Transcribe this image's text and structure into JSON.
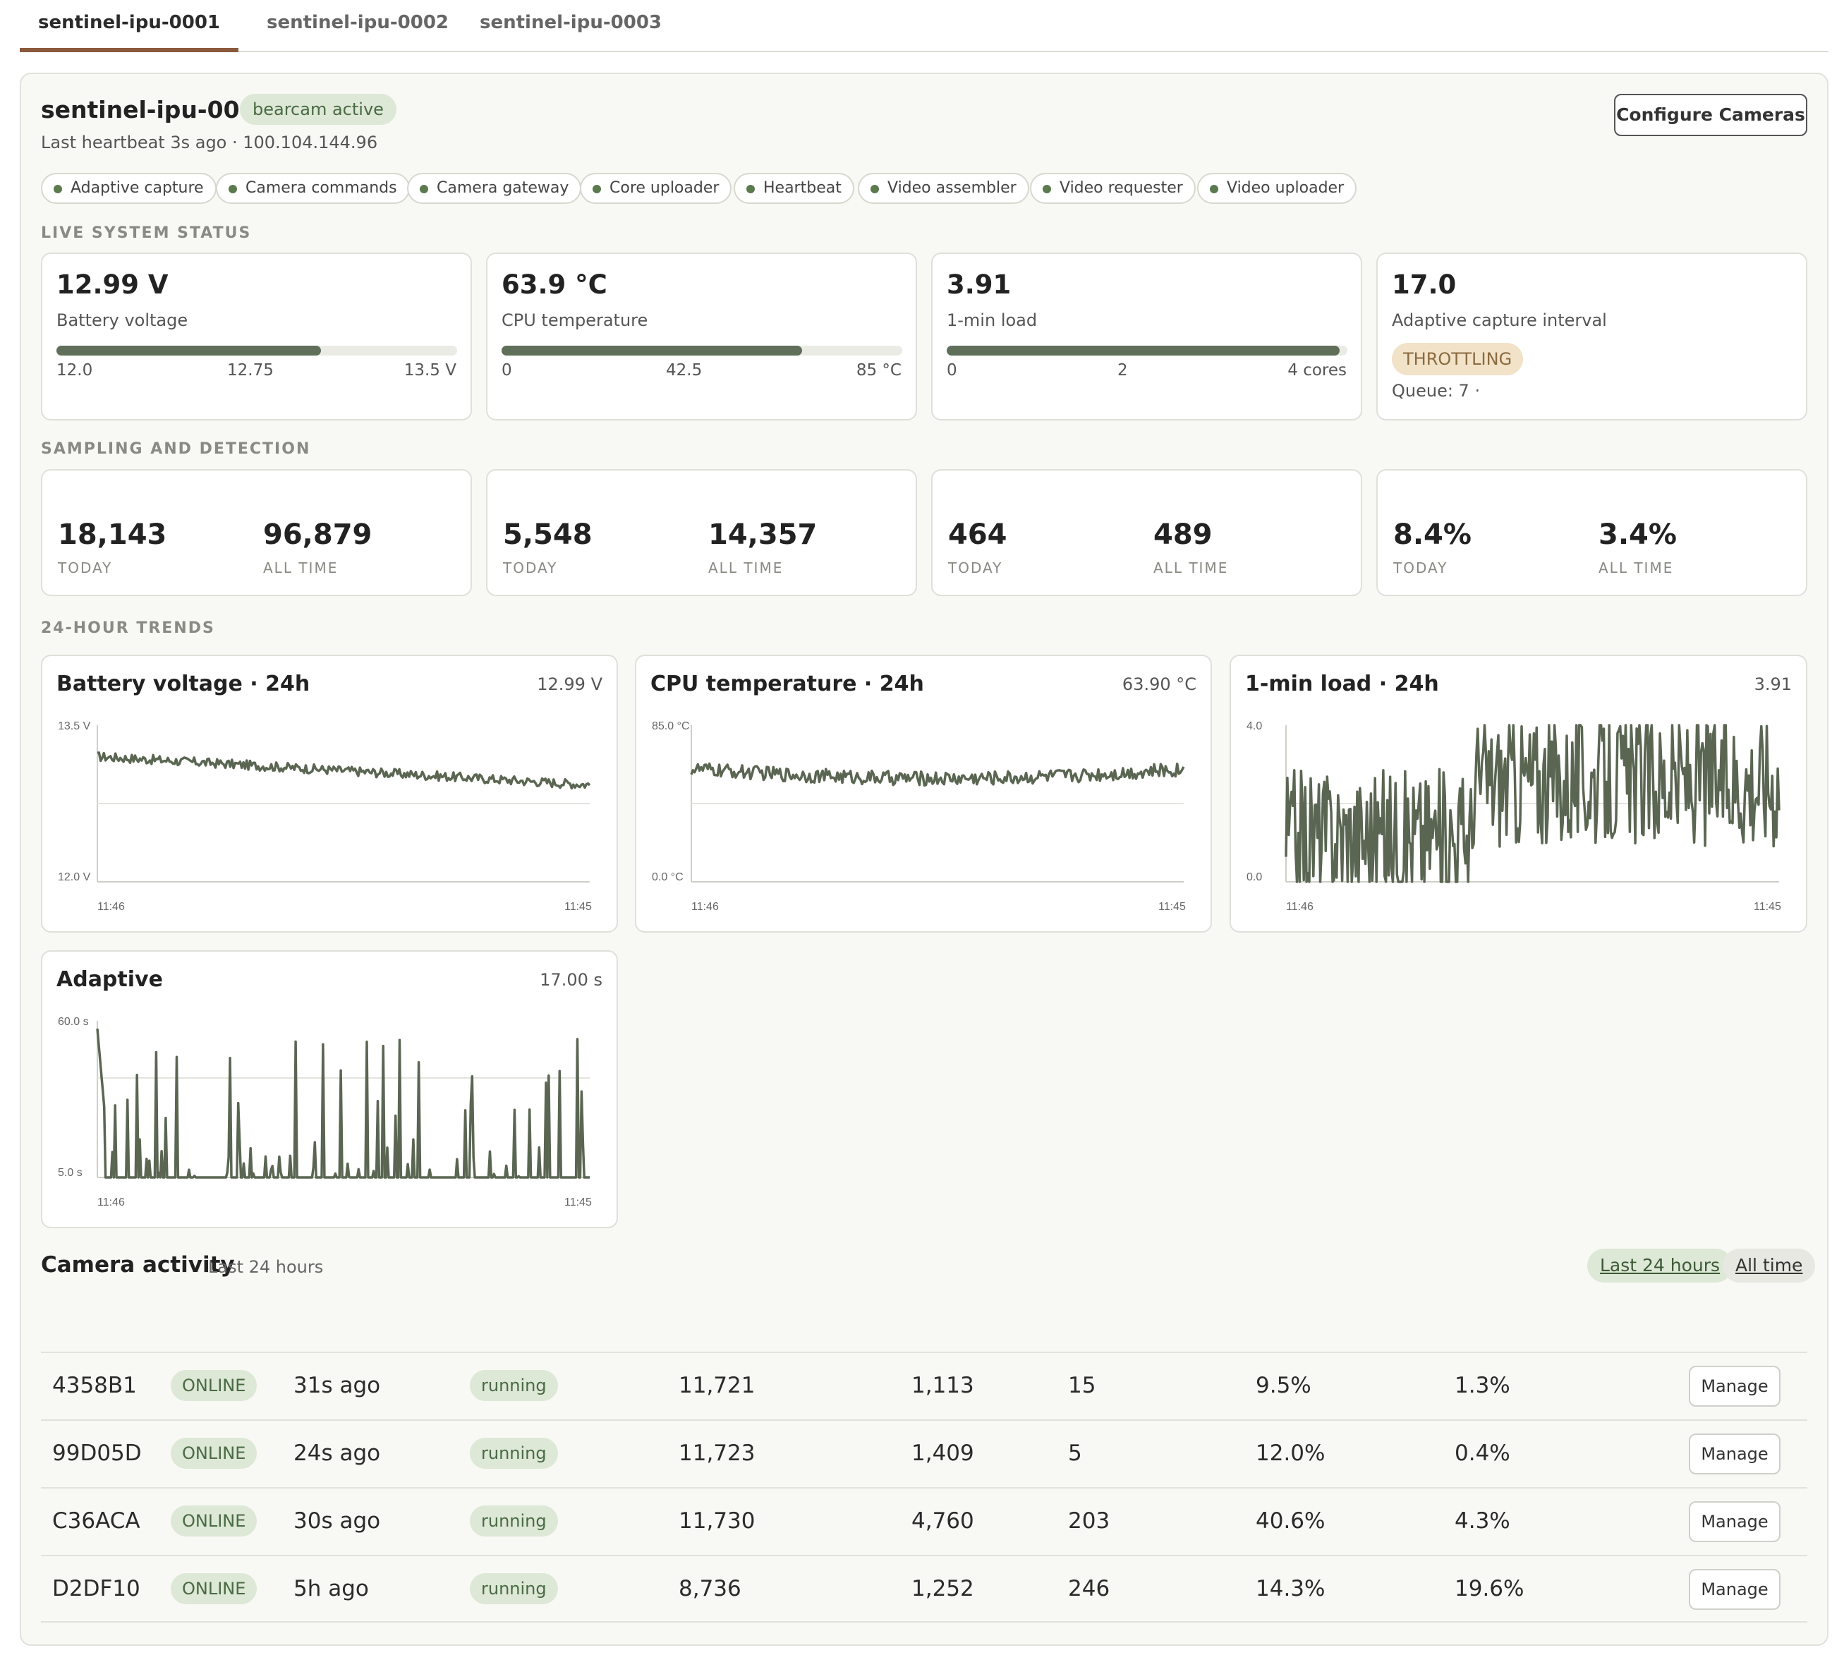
{
  "tabs": [
    {
      "label": "sentinel-ipu-0001",
      "active": true
    },
    {
      "label": "sentinel-ipu-0002",
      "active": false
    },
    {
      "label": "sentinel-ipu-0003",
      "active": false
    }
  ],
  "device": {
    "name": "sentinel-ipu-0001",
    "status_pill": "bearcam active",
    "heartbeat": "Last heartbeat 3s ago · 100.104.144.96",
    "configure_label": "Configure Cameras"
  },
  "services": [
    "Adaptive capture",
    "Camera commands",
    "Camera gateway",
    "Core uploader",
    "Heartbeat",
    "Video assembler",
    "Video requester",
    "Video uploader"
  ],
  "sections": {
    "live": "LIVE SYSTEM STATUS",
    "sampling": "SAMPLING AND DETECTION",
    "trends": "24-HOUR TRENDS"
  },
  "live": [
    {
      "value": "12.99 V",
      "label": "Battery voltage",
      "fill": 0.66,
      "ticks": [
        "12.0",
        "12.75",
        "13.5 V"
      ]
    },
    {
      "value": "63.9 °C",
      "label": "CPU temperature",
      "fill": 0.75,
      "ticks": [
        "0",
        "42.5",
        "85 °C"
      ]
    },
    {
      "value": "3.91",
      "label": "1-min load",
      "fill": 0.98,
      "ticks": [
        "0",
        "2",
        "4 cores"
      ]
    },
    {
      "value": "17.0",
      "label": "Adaptive capture interval",
      "badge": "THROTTLING",
      "queue": "Queue: 7 ·"
    }
  ],
  "sampling": [
    {
      "today": "18,143",
      "all": "96,879"
    },
    {
      "today": "5,548",
      "all": "14,357"
    },
    {
      "today": "464",
      "all": "489"
    },
    {
      "today": "8.4%",
      "all": "3.4%"
    }
  ],
  "sampling_labels": {
    "today": "TODAY",
    "all": "ALL TIME"
  },
  "charts": [
    {
      "title": "Battery voltage · 24h",
      "current": "12.99 V",
      "ymax": "13.5 V",
      "ymin": "12.0 V",
      "xstart": "11:46",
      "xend": "11:45"
    },
    {
      "title": "CPU temperature · 24h",
      "current": "63.90 °C",
      "ymax": "85.0 °C",
      "ymin": "0.0 °C",
      "xstart": "11:46",
      "xend": "11:45"
    },
    {
      "title": "1-min load · 24h",
      "current": "3.91",
      "ymax": "4.0",
      "ymin": "0.0",
      "xstart": "11:46",
      "xend": "11:45"
    },
    {
      "title": "Adaptive",
      "current": "17.00 s",
      "ymax": "60.0 s",
      "ymin": "5.0 s",
      "xstart": "11:46",
      "xend": "11:45"
    }
  ],
  "activity": {
    "title": "Camera activity",
    "subtitle": "Last 24 hours",
    "range_24h": "Last 24 hours",
    "range_all": "All time",
    "manage_label": "Manage",
    "rows": [
      {
        "id": "4358B1",
        "status": "ONLINE",
        "seen": "31s ago",
        "state": "running",
        "c1": "11,721",
        "c2": "1,113",
        "c3": "15",
        "c4": "9.5%",
        "c5": "1.3%"
      },
      {
        "id": "99D05D",
        "status": "ONLINE",
        "seen": "24s ago",
        "state": "running",
        "c1": "11,723",
        "c2": "1,409",
        "c3": "5",
        "c4": "12.0%",
        "c5": "0.4%"
      },
      {
        "id": "C36ACA",
        "status": "ONLINE",
        "seen": "30s ago",
        "state": "running",
        "c1": "11,730",
        "c2": "4,760",
        "c3": "203",
        "c4": "40.6%",
        "c5": "4.3%"
      },
      {
        "id": "D2DF10",
        "status": "ONLINE",
        "seen": "5h ago",
        "state": "running",
        "c1": "8,736",
        "c2": "1,252",
        "c3": "246",
        "c4": "14.3%",
        "c5": "19.6%"
      }
    ]
  },
  "colors": {
    "accent": "#8b5a3c",
    "series": "#5a6652",
    "ok_bg": "#dde8d6",
    "warn_bg": "#f1e2c8"
  }
}
